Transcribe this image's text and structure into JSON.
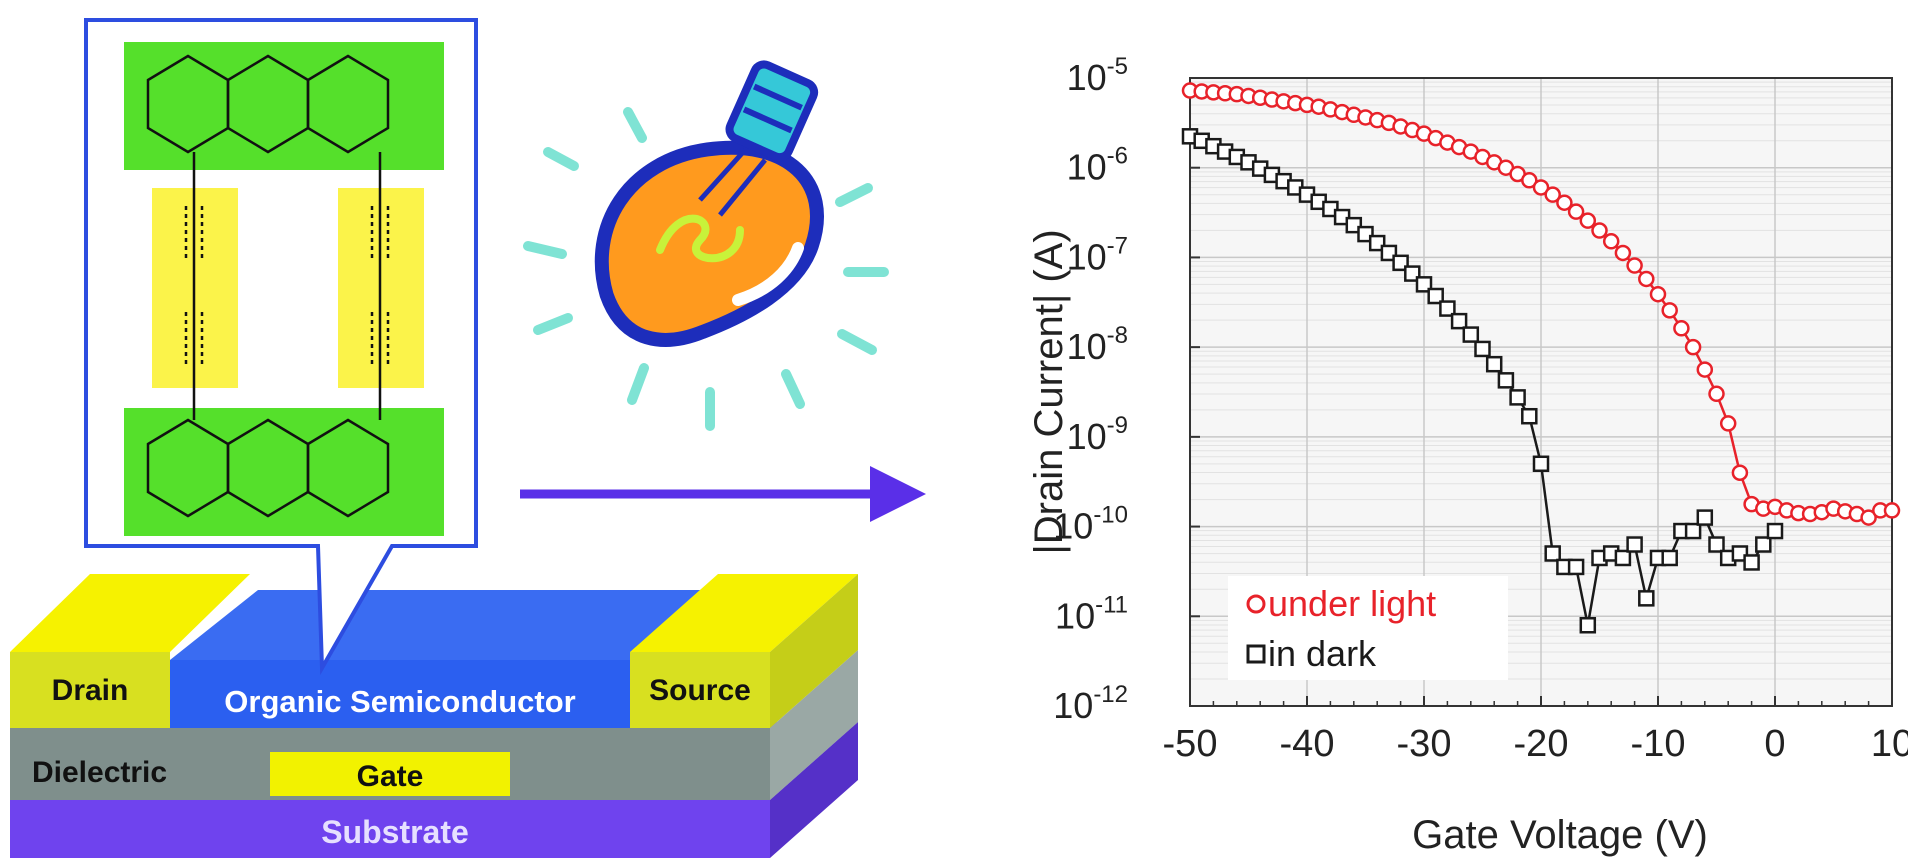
{
  "device": {
    "layers": {
      "drain": "Drain",
      "source": "Source",
      "semiconductor": "Organic Semiconductor",
      "dielectric": "Dielectric",
      "gate": "Gate",
      "substrate": "Substrate"
    },
    "colors": {
      "electrode_yellow": "#f2f200",
      "semiconductor_blue": "#2b5ff0",
      "dielectric_gray": "#7f8f8c",
      "substrate_purple": "#6f43ee",
      "molecule_green": "#55e02b",
      "bridge_yellow": "#fbf34a",
      "callout_border": "#2d4de0",
      "arrow": "#5a2fe8"
    }
  },
  "bulb": {
    "colors": {
      "glass": "#ff9a1e",
      "outline": "#1d2dbb",
      "filament": "#c8f23a",
      "socket": "#35c8d8",
      "rays": "#7fe3d4"
    }
  },
  "chart_data": {
    "type": "scatter",
    "xlabel": "Gate Voltage (V)",
    "ylabel": "|Drain Current| (A)",
    "xlim": [
      -50,
      10
    ],
    "ylim_log10": [
      -12,
      -5
    ],
    "yscale": "log",
    "x_ticks": [
      "-50",
      "-40",
      "-30",
      "-20",
      "-10",
      "0",
      "10"
    ],
    "x_tick_values": [
      -50,
      -40,
      -30,
      -20,
      -10,
      0,
      10
    ],
    "y_tick_exponents": [
      -5,
      -6,
      -7,
      -8,
      -9,
      -10,
      -11,
      -12
    ],
    "y_tick_base": "10",
    "y_tick_exps_text": [
      "-5",
      "-6",
      "-7",
      "-8",
      "-9",
      "-10",
      "-11",
      "-12"
    ],
    "grid": true,
    "legend_position": "bottom-left",
    "series": [
      {
        "name": "under light",
        "color": "#e8222a",
        "marker": "circle",
        "x": [
          -50,
          -49,
          -48,
          -47,
          -46,
          -45,
          -44,
          -43,
          -42,
          -41,
          -40,
          -39,
          -38,
          -37,
          -36,
          -35,
          -34,
          -33,
          -32,
          -31,
          -30,
          -29,
          -28,
          -27,
          -26,
          -25,
          -24,
          -23,
          -22,
          -21,
          -20,
          -19,
          -18,
          -17,
          -16,
          -15,
          -14,
          -13,
          -12,
          -11,
          -10,
          -9,
          -8,
          -7,
          -6,
          -5,
          -4,
          -3,
          -2,
          -1,
          0,
          1,
          2,
          3,
          4,
          5,
          6,
          7,
          8,
          9,
          10
        ],
        "log10y": [
          -5.14,
          -5.15,
          -5.16,
          -5.17,
          -5.18,
          -5.2,
          -5.22,
          -5.24,
          -5.26,
          -5.28,
          -5.3,
          -5.32,
          -5.35,
          -5.38,
          -5.41,
          -5.44,
          -5.47,
          -5.5,
          -5.54,
          -5.58,
          -5.62,
          -5.67,
          -5.72,
          -5.77,
          -5.82,
          -5.88,
          -5.94,
          -6.0,
          -6.07,
          -6.14,
          -6.22,
          -6.3,
          -6.39,
          -6.49,
          -6.59,
          -6.7,
          -6.82,
          -6.95,
          -7.09,
          -7.24,
          -7.41,
          -7.59,
          -7.79,
          -8.0,
          -8.25,
          -8.52,
          -8.85,
          -9.4,
          -9.75,
          -9.8,
          -9.78,
          -9.82,
          -9.85,
          -9.86,
          -9.84,
          -9.8,
          -9.83,
          -9.86,
          -9.9,
          -9.82,
          -9.82
        ]
      },
      {
        "name": "in dark",
        "color": "#1a1a1a",
        "marker": "square",
        "x": [
          -50,
          -49,
          -48,
          -47,
          -46,
          -45,
          -44,
          -43,
          -42,
          -41,
          -40,
          -39,
          -38,
          -37,
          -36,
          -35,
          -34,
          -33,
          -32,
          -31,
          -30,
          -29,
          -28,
          -27,
          -26,
          -25,
          -24,
          -23,
          -22,
          -21,
          -20,
          -19,
          -18,
          -17,
          -16,
          -15,
          -14,
          -13,
          -12,
          -11,
          -10,
          -9,
          -8,
          -7,
          -6,
          -5,
          -4,
          -3,
          -2,
          -1,
          0
        ],
        "log10y": [
          -5.65,
          -5.7,
          -5.76,
          -5.82,
          -5.88,
          -5.94,
          -6.01,
          -6.08,
          -6.15,
          -6.22,
          -6.3,
          -6.38,
          -6.46,
          -6.55,
          -6.64,
          -6.74,
          -6.84,
          -6.95,
          -7.06,
          -7.18,
          -7.3,
          -7.43,
          -7.57,
          -7.71,
          -7.86,
          -8.02,
          -8.19,
          -8.37,
          -8.56,
          -8.77,
          -9.3,
          -10.3,
          -10.45,
          -10.45,
          -11.1,
          -10.35,
          -10.3,
          -10.35,
          -10.2,
          -10.8,
          -10.35,
          -10.35,
          -10.05,
          -10.05,
          -9.9,
          -10.2,
          -10.35,
          -10.3,
          -10.4,
          -10.2,
          -10.05
        ]
      }
    ]
  }
}
